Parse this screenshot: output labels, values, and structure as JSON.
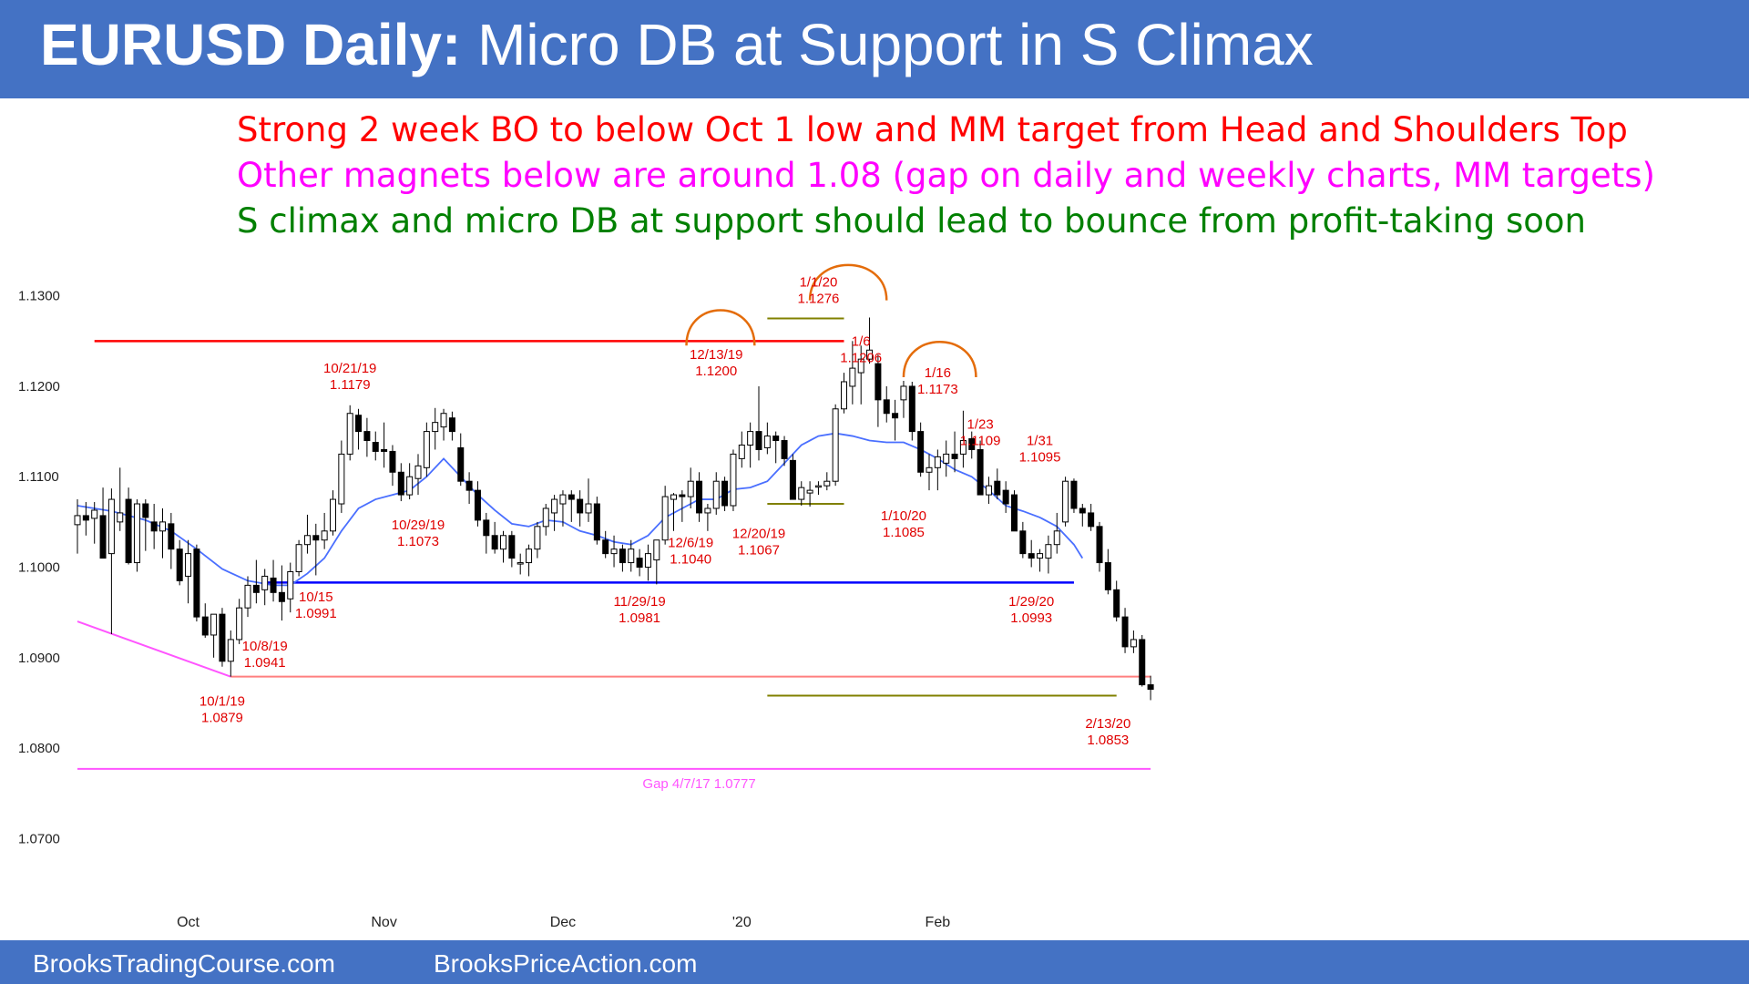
{
  "header": {
    "title_bold": "EURUSD Daily:",
    "title_rest": " Micro DB at Support in S Climax"
  },
  "notes": [
    {
      "text": "Strong 2 week BO to below Oct 1 low and MM target from Head and Shoulders Top",
      "color": "#FF0000"
    },
    {
      "text": "Other magnets below are around 1.08 (gap on daily and weekly charts, MM targets)",
      "color": "#FF00FF"
    },
    {
      "text": "S climax and micro DB at support should lead to bounce from profit-taking soon",
      "color": "#008000"
    }
  ],
  "footer": {
    "left": "BrooksTradingCourse.com",
    "right": "BrooksPriceAction.com"
  },
  "colors": {
    "brand": "#4472C4",
    "ema": "#4A6FFF",
    "resistance": "#FF0000",
    "support": "#0000FF",
    "target": "#FF7F7F",
    "gap": "#FF55FF",
    "mm": "#808000",
    "head_arc": "#E46C0A",
    "label": "#E00000"
  },
  "chart_data": {
    "type": "candlestick",
    "y_ticks": [
      "1.1300",
      "1.1200",
      "1.1100",
      "1.1000",
      "1.0900",
      "1.0800",
      "1.0700"
    ],
    "ylim": [
      1.065,
      1.1345
    ],
    "x_month_labels": [
      {
        "label": "Oct",
        "bar": 13
      },
      {
        "label": "Nov",
        "bar": 36
      },
      {
        "label": "Dec",
        "bar": 57
      },
      {
        "label": "'20",
        "bar": 78
      },
      {
        "label": "Feb",
        "bar": 101
      }
    ],
    "bars": [
      [
        1.1047,
        1.1075,
        1.1015,
        1.1057
      ],
      [
        1.1057,
        1.1072,
        1.1035,
        1.1052
      ],
      [
        1.1054,
        1.1072,
        1.1026,
        1.1063
      ],
      [
        1.1057,
        1.1088,
        1.1012,
        1.101
      ],
      [
        1.1015,
        1.1087,
        1.0926,
        1.1075
      ],
      [
        1.105,
        1.111,
        1.104,
        1.106
      ],
      [
        1.1075,
        1.1088,
        1.1003,
        1.1005
      ],
      [
        1.1005,
        1.1075,
        1.0995,
        1.107
      ],
      [
        1.107,
        1.1075,
        1.1018,
        1.1055
      ],
      [
        1.105,
        1.107,
        1.102,
        1.104
      ],
      [
        1.104,
        1.1065,
        1.101,
        1.105
      ],
      [
        1.1048,
        1.106,
        1.0998,
        1.102
      ],
      [
        1.102,
        1.103,
        1.098,
        1.0985
      ],
      [
        1.099,
        1.103,
        1.096,
        1.1015
      ],
      [
        1.102,
        1.1025,
        1.094,
        1.0945
      ],
      [
        1.0945,
        1.096,
        1.0922,
        1.0925
      ],
      [
        1.0925,
        1.0948,
        1.09,
        1.0948
      ],
      [
        1.0948,
        1.0955,
        1.089,
        1.0896
      ],
      [
        1.0896,
        1.093,
        1.0879,
        1.092
      ],
      [
        1.092,
        1.0965,
        1.0915,
        1.0955
      ],
      [
        1.0955,
        1.099,
        1.0945,
        1.098
      ],
      [
        1.098,
        1.1008,
        1.096,
        1.0972
      ],
      [
        1.0975,
        1.0998,
        1.0958,
        1.099
      ],
      [
        1.0988,
        1.1008,
        1.0962,
        1.0972
      ],
      [
        1.0972,
        1.1002,
        1.0941,
        1.0962
      ],
      [
        1.0965,
        1.1005,
        1.095,
        1.0995
      ],
      [
        1.0995,
        1.103,
        1.099,
        1.1025
      ],
      [
        1.1025,
        1.1058,
        1.1015,
        1.1035
      ],
      [
        1.1035,
        1.1048,
        1.0991,
        1.103
      ],
      [
        1.103,
        1.106,
        1.102,
        1.104
      ],
      [
        1.104,
        1.1085,
        1.1035,
        1.1075
      ],
      [
        1.107,
        1.114,
        1.106,
        1.1125
      ],
      [
        1.1125,
        1.1179,
        1.1118,
        1.117
      ],
      [
        1.1168,
        1.1175,
        1.113,
        1.115
      ],
      [
        1.115,
        1.1165,
        1.1122,
        1.114
      ],
      [
        1.1138,
        1.115,
        1.1118,
        1.1128
      ],
      [
        1.113,
        1.116,
        1.111,
        1.1128
      ],
      [
        1.1128,
        1.1135,
        1.109,
        1.1105
      ],
      [
        1.1105,
        1.1115,
        1.1073,
        1.108
      ],
      [
        1.108,
        1.1115,
        1.1075,
        1.11
      ],
      [
        1.1098,
        1.1125,
        1.108,
        1.1112
      ],
      [
        1.111,
        1.116,
        1.11,
        1.115
      ],
      [
        1.115,
        1.1176,
        1.113,
        1.116
      ],
      [
        1.1155,
        1.1175,
        1.114,
        1.117
      ],
      [
        1.1165,
        1.1172,
        1.114,
        1.115
      ],
      [
        1.1132,
        1.1148,
        1.109,
        1.1095
      ],
      [
        1.1095,
        1.1105,
        1.107,
        1.1085
      ],
      [
        1.1085,
        1.1095,
        1.1045,
        1.1052
      ],
      [
        1.1052,
        1.106,
        1.1015,
        1.1035
      ],
      [
        1.1035,
        1.105,
        1.1015,
        1.102
      ],
      [
        1.102,
        1.104,
        1.1005,
        1.1035
      ],
      [
        1.1035,
        1.104,
        1.1,
        1.101
      ],
      [
        1.1005,
        1.1015,
        1.0992,
        1.1005
      ],
      [
        1.1005,
        1.1025,
        1.099,
        1.102
      ],
      [
        1.102,
        1.105,
        1.101,
        1.1045
      ],
      [
        1.1045,
        1.107,
        1.1035,
        1.1065
      ],
      [
        1.106,
        1.108,
        1.104,
        1.1075
      ],
      [
        1.107,
        1.1085,
        1.1045,
        1.108
      ],
      [
        1.108,
        1.1085,
        1.105,
        1.1075
      ],
      [
        1.1075,
        1.1085,
        1.1045,
        1.106
      ],
      [
        1.106,
        1.1098,
        1.105,
        1.107
      ],
      [
        1.107,
        1.1078,
        1.1025,
        1.103
      ],
      [
        1.103,
        1.104,
        1.101,
        1.1015
      ],
      [
        1.1015,
        1.1035,
        1.1,
        1.102
      ],
      [
        1.102,
        1.1025,
        1.0995,
        1.1005
      ],
      [
        1.1005,
        1.103,
        1.0995,
        1.102
      ],
      [
        1.101,
        1.102,
        1.099,
        1.1
      ],
      [
        1.1,
        1.1025,
        1.0985,
        1.1015
      ],
      [
        1.1008,
        1.103,
        1.0981,
        1.103
      ],
      [
        1.103,
        1.109,
        1.1025,
        1.1078
      ],
      [
        1.1075,
        1.1082,
        1.104,
        1.108
      ],
      [
        1.108,
        1.1085,
        1.105,
        1.1078
      ],
      [
        1.1078,
        1.111,
        1.1065,
        1.1095
      ],
      [
        1.1095,
        1.1105,
        1.105,
        1.106
      ],
      [
        1.106,
        1.107,
        1.104,
        1.1065
      ],
      [
        1.1065,
        1.1105,
        1.1058,
        1.1095
      ],
      [
        1.1095,
        1.11,
        1.1062,
        1.1068
      ],
      [
        1.1068,
        1.113,
        1.1062,
        1.1125
      ],
      [
        1.112,
        1.115,
        1.111,
        1.1135
      ],
      [
        1.1135,
        1.116,
        1.111,
        1.115
      ],
      [
        1.115,
        1.12,
        1.1118,
        1.113
      ],
      [
        1.1132,
        1.116,
        1.1125,
        1.1145
      ],
      [
        1.1145,
        1.115,
        1.1115,
        1.114
      ],
      [
        1.114,
        1.1145,
        1.1112,
        1.112
      ],
      [
        1.1118,
        1.1125,
        1.1075,
        1.1075
      ],
      [
        1.1075,
        1.1095,
        1.1068,
        1.1088
      ],
      [
        1.1082,
        1.1095,
        1.1067,
        1.1085
      ],
      [
        1.109,
        1.1095,
        1.108,
        1.109
      ],
      [
        1.109,
        1.1105,
        1.1085,
        1.1095
      ],
      [
        1.1095,
        1.118,
        1.109,
        1.1175
      ],
      [
        1.1175,
        1.1215,
        1.117,
        1.1205
      ],
      [
        1.12,
        1.125,
        1.118,
        1.122
      ],
      [
        1.1215,
        1.1245,
        1.118,
        1.123
      ],
      [
        1.123,
        1.1276,
        1.1225,
        1.124
      ],
      [
        1.1225,
        1.1235,
        1.1155,
        1.1185
      ],
      [
        1.1185,
        1.12,
        1.116,
        1.117
      ],
      [
        1.117,
        1.1185,
        1.114,
        1.1165
      ],
      [
        1.1185,
        1.1206,
        1.1165,
        1.12
      ],
      [
        1.12,
        1.1205,
        1.114,
        1.115
      ],
      [
        1.115,
        1.116,
        1.11,
        1.1105
      ],
      [
        1.1105,
        1.1125,
        1.1085,
        1.111
      ],
      [
        1.111,
        1.113,
        1.1085,
        1.1122
      ],
      [
        1.1115,
        1.114,
        1.11,
        1.1125
      ],
      [
        1.1125,
        1.115,
        1.1105,
        1.112
      ],
      [
        1.1125,
        1.1173,
        1.111,
        1.114
      ],
      [
        1.1142,
        1.115,
        1.112,
        1.113
      ],
      [
        1.113,
        1.114,
        1.108,
        1.108
      ],
      [
        1.108,
        1.11,
        1.107,
        1.109
      ],
      [
        1.1095,
        1.1109,
        1.1075,
        1.108
      ],
      [
        1.1085,
        1.1095,
        1.106,
        1.107
      ],
      [
        1.108,
        1.1085,
        1.104,
        1.104
      ],
      [
        1.104,
        1.105,
        1.101,
        1.1015
      ],
      [
        1.1015,
        1.103,
        1.1,
        1.101
      ],
      [
        1.101,
        1.102,
        1.0995,
        1.1015
      ],
      [
        1.101,
        1.1035,
        1.0993,
        1.1025
      ],
      [
        1.1025,
        1.106,
        1.1015,
        1.104
      ],
      [
        1.105,
        1.11,
        1.1045,
        1.1095
      ],
      [
        1.1095,
        1.1098,
        1.106,
        1.1065
      ],
      [
        1.1065,
        1.107,
        1.1045,
        1.106
      ],
      [
        1.106,
        1.107,
        1.104,
        1.1045
      ],
      [
        1.1045,
        1.105,
        1.0995,
        1.1005
      ],
      [
        1.1005,
        1.102,
        1.097,
        1.0975
      ],
      [
        1.0975,
        1.0985,
        1.094,
        1.0945
      ],
      [
        1.0945,
        1.0955,
        1.0905,
        1.0912
      ],
      [
        1.0912,
        1.093,
        1.0905,
        1.092
      ],
      [
        1.092,
        1.0925,
        1.0868,
        1.087
      ],
      [
        1.087,
        1.088,
        1.0853,
        1.0865
      ]
    ],
    "ema": [
      [
        0,
        1.1068
      ],
      [
        4,
        1.1062
      ],
      [
        8,
        1.1052
      ],
      [
        11,
        1.104
      ],
      [
        14,
        1.102
      ],
      [
        17,
        1.0998
      ],
      [
        20,
        1.0985
      ],
      [
        23,
        1.098
      ],
      [
        25,
        1.098
      ],
      [
        27,
        1.0993
      ],
      [
        29,
        1.101
      ],
      [
        31,
        1.104
      ],
      [
        33,
        1.1065
      ],
      [
        35,
        1.1075
      ],
      [
        37,
        1.108
      ],
      [
        39,
        1.1085
      ],
      [
        41,
        1.11
      ],
      [
        43,
        1.112
      ],
      [
        45,
        1.11
      ],
      [
        47,
        1.108
      ],
      [
        49,
        1.1063
      ],
      [
        51,
        1.1048
      ],
      [
        53,
        1.1045
      ],
      [
        55,
        1.1052
      ],
      [
        57,
        1.105
      ],
      [
        59,
        1.104
      ],
      [
        61,
        1.1035
      ],
      [
        63,
        1.1028
      ],
      [
        65,
        1.1025
      ],
      [
        67,
        1.1035
      ],
      [
        69,
        1.1055
      ],
      [
        71,
        1.1065
      ],
      [
        73,
        1.1075
      ],
      [
        75,
        1.1075
      ],
      [
        77,
        1.1086
      ],
      [
        79,
        1.1088
      ],
      [
        81,
        1.1095
      ],
      [
        83,
        1.1115
      ],
      [
        85,
        1.1135
      ],
      [
        87,
        1.1145
      ],
      [
        89,
        1.1148
      ],
      [
        91,
        1.1145
      ],
      [
        93,
        1.114
      ],
      [
        95,
        1.1138
      ],
      [
        97,
        1.1138
      ],
      [
        99,
        1.113
      ],
      [
        101,
        1.112
      ],
      [
        103,
        1.1108
      ],
      [
        105,
        1.11
      ],
      [
        107,
        1.1085
      ],
      [
        109,
        1.1068
      ],
      [
        111,
        1.1062
      ],
      [
        113,
        1.1055
      ],
      [
        115,
        1.1045
      ],
      [
        117,
        1.1025
      ],
      [
        118,
        1.101
      ]
    ],
    "lines": [
      {
        "kind": "resistance",
        "y": 1.125,
        "from": 2,
        "to": 90
      },
      {
        "kind": "support",
        "y": 1.0983,
        "from": 22,
        "to": 117
      },
      {
        "kind": "target",
        "y": 1.0879,
        "from": 18,
        "to": 126
      },
      {
        "kind": "gap",
        "y": 1.0777,
        "from": 0,
        "to": 126
      },
      {
        "kind": "mm",
        "y": 1.1275,
        "from": 81,
        "to": 90
      },
      {
        "kind": "mm",
        "y": 1.107,
        "from": 81,
        "to": 90
      },
      {
        "kind": "mm",
        "y": 1.0858,
        "from": 81,
        "to": 122
      },
      {
        "kind": "wedge",
        "y": 1.094,
        "y2": 1.0879,
        "from": 0,
        "to": 18
      }
    ],
    "arcs": [
      {
        "from": 71.5,
        "to": 79.5,
        "y": 1.1245,
        "h": 0.004
      },
      {
        "from": 86,
        "to": 95,
        "y": 1.1295,
        "h": 0.004
      },
      {
        "from": 97,
        "to": 105.5,
        "y": 1.121,
        "h": 0.004
      }
    ],
    "annotations": [
      {
        "line1": "10/1/19",
        "line2": "1.0879",
        "bar": 17,
        "y": 1.0847
      },
      {
        "line1": "10/8/19",
        "line2": "1.0941",
        "bar": 22,
        "y": 1.0908
      },
      {
        "line1": "10/15",
        "line2": "1.0991",
        "bar": 28,
        "y": 1.0962
      },
      {
        "line1": "10/21/19",
        "line2": "1.1179",
        "bar": 32,
        "y": 1.1215
      },
      {
        "line1": "10/29/19",
        "line2": "1.1073",
        "bar": 40,
        "y": 1.1042
      },
      {
        "line1": "11/29/19",
        "line2": "1.0981",
        "bar": 66,
        "y": 1.0957
      },
      {
        "line1": "12/6/19",
        "line2": "1.1040",
        "bar": 72,
        "y": 1.1022
      },
      {
        "line1": "12/13/19",
        "line2": "1.1200",
        "bar": 75,
        "y": 1.123
      },
      {
        "line1": "12/20/19",
        "line2": "1.1067",
        "bar": 80,
        "y": 1.1032
      },
      {
        "line1": "1/1/20",
        "line2": "1.1276",
        "bar": 87,
        "y": 1.131
      },
      {
        "line1": "1/6",
        "line2": "1.1206",
        "bar": 92,
        "y": 1.1245
      },
      {
        "line1": "1/10/20",
        "line2": "1.1085",
        "bar": 97,
        "y": 1.1052
      },
      {
        "line1": "1/16",
        "line2": "1.1173",
        "bar": 101,
        "y": 1.121
      },
      {
        "line1": "1/23",
        "line2": "1.1109",
        "bar": 106,
        "y": 1.1153
      },
      {
        "line1": "1/29/20",
        "line2": "1.0993",
        "bar": 112,
        "y": 1.0957
      },
      {
        "line1": "1/31",
        "line2": "1.1095",
        "bar": 113,
        "y": 1.1135
      },
      {
        "line1": "2/13/20",
        "line2": "1.0853",
        "bar": 121,
        "y": 1.0822
      }
    ],
    "gap_label": "Gap 4/7/17 1.0777"
  }
}
